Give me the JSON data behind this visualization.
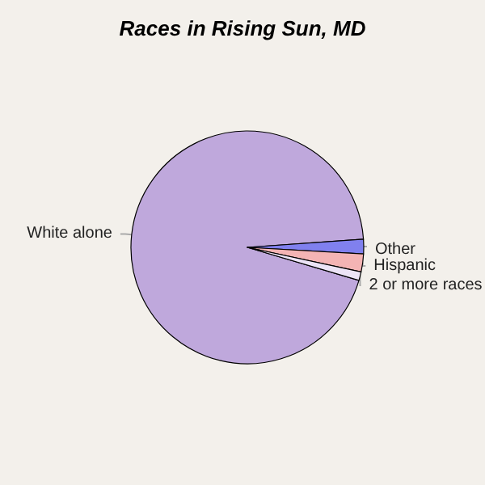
{
  "chart_data": {
    "type": "pie",
    "title": "Races in Rising Sun, MD",
    "categories": [
      "White alone",
      "Other",
      "Hispanic",
      "2 or more races"
    ],
    "values": [
      94.3,
      2,
      2.5,
      1.2
    ],
    "colors": [
      "#bfa8dc",
      "#8080ee",
      "#f4b4b4",
      "#ece4f6"
    ]
  }
}
